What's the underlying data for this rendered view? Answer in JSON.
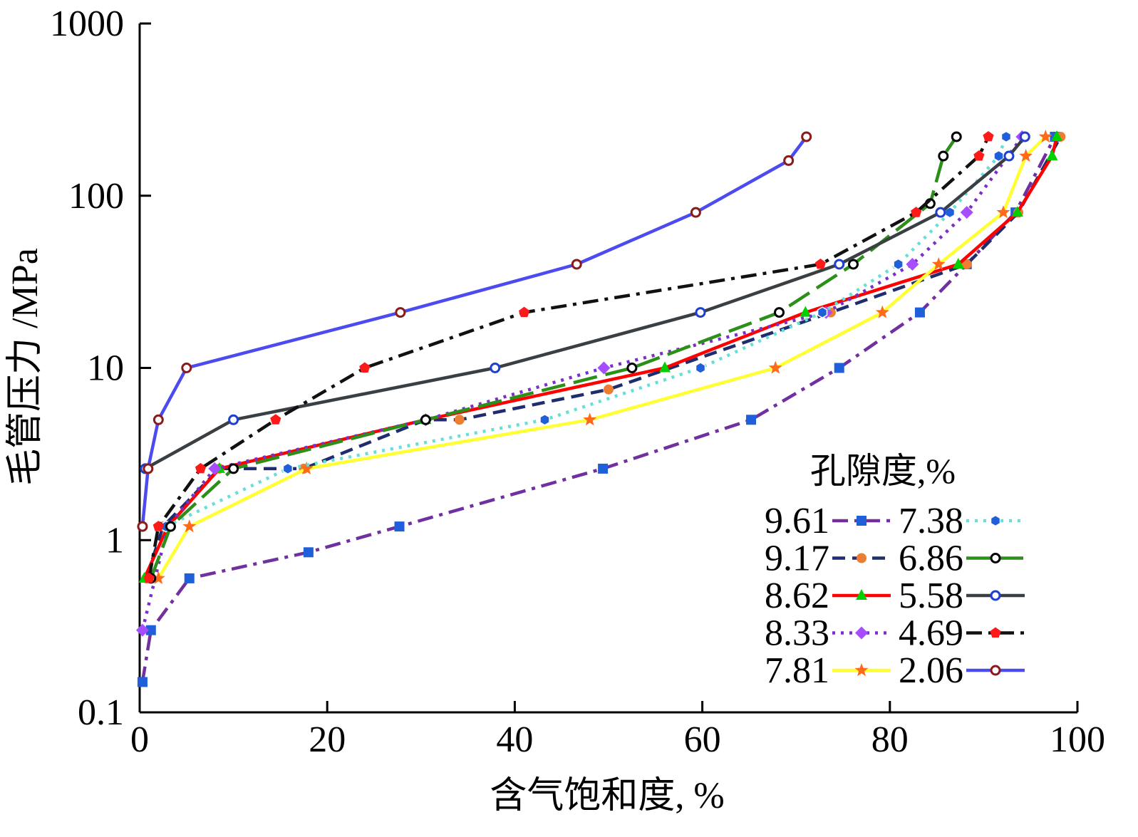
{
  "chart_data": {
    "type": "line",
    "xlabel": "含气饱和度, %",
    "ylabel": "毛管压力 /MPa",
    "xlim": [
      0,
      100
    ],
    "ylim": [
      0.1,
      1000
    ],
    "y_scale": "log",
    "x_ticks": [
      "0",
      "20",
      "40",
      "60",
      "80",
      "100"
    ],
    "y_ticks": [
      "0.1",
      "1",
      "10",
      "100",
      "1000"
    ],
    "legend": {
      "title": "孔隙度,%",
      "placement": "bottom-right",
      "columns": 2
    },
    "series": [
      {
        "name": "9.61",
        "color": "#7030a0",
        "dash": "dashdot",
        "marker": "square",
        "marker_color": "#1f5fd9",
        "points": [
          [
            0.3,
            0.15
          ],
          [
            1.2,
            0.3
          ],
          [
            5.3,
            0.6
          ],
          [
            18,
            0.85
          ],
          [
            27.7,
            1.2
          ],
          [
            49.4,
            2.6
          ],
          [
            65.2,
            5
          ],
          [
            74.6,
            10
          ],
          [
            83.2,
            21
          ],
          [
            88.2,
            40
          ],
          [
            93.4,
            80
          ],
          [
            97.6,
            220
          ]
        ]
      },
      {
        "name": "9.17",
        "color": "#1f2d6e",
        "dash": "dash",
        "marker": "circle",
        "marker_color": "#ed7d31",
        "points": [
          [
            0.7,
            0.6
          ],
          [
            2.5,
            1.2
          ],
          [
            8.5,
            2.6
          ],
          [
            17.5,
            2.6
          ],
          [
            30.5,
            5
          ],
          [
            34.1,
            5
          ],
          [
            50,
            7.5
          ],
          [
            73.7,
            21
          ],
          [
            88.2,
            40
          ],
          [
            93.7,
            80
          ],
          [
            98.2,
            220
          ]
        ]
      },
      {
        "name": "8.62",
        "color": "#ff0000",
        "dash": "solid",
        "marker": "triangle",
        "marker_color": "#00d000",
        "points": [
          [
            0.5,
            0.6
          ],
          [
            3,
            1.2
          ],
          [
            8.5,
            2.6
          ],
          [
            30.5,
            5
          ],
          [
            56,
            10
          ],
          [
            71,
            21
          ],
          [
            87.3,
            40
          ],
          [
            93.6,
            80
          ],
          [
            97.3,
            170
          ],
          [
            97.8,
            220
          ]
        ]
      },
      {
        "name": "8.33",
        "color": "#7b2fc9",
        "dash": "dot",
        "marker": "diamond",
        "marker_color": "#a64dff",
        "points": [
          [
            0.3,
            0.3
          ],
          [
            3,
            1.2
          ],
          [
            8,
            2.6
          ],
          [
            30.5,
            5
          ],
          [
            49.5,
            10
          ],
          [
            73.2,
            21
          ],
          [
            82.4,
            40
          ],
          [
            88.2,
            80
          ],
          [
            94.1,
            220
          ]
        ]
      },
      {
        "name": "7.81",
        "color": "#ffff33",
        "dash": "solid",
        "marker": "star",
        "marker_color": "#ff6a1a",
        "points": [
          [
            2,
            0.6
          ],
          [
            5.3,
            1.2
          ],
          [
            17.8,
            2.6
          ],
          [
            48,
            5
          ],
          [
            67.8,
            10
          ],
          [
            79.2,
            21
          ],
          [
            85.2,
            40
          ],
          [
            92.1,
            80
          ],
          [
            94.5,
            170
          ],
          [
            96.6,
            220
          ]
        ]
      },
      {
        "name": "7.38",
        "color": "#66e0d6",
        "dash": "dot",
        "marker": "hexagon",
        "marker_color": "#1f5fd9",
        "points": [
          [
            2.8,
            1.2
          ],
          [
            15.8,
            2.6
          ],
          [
            43.2,
            5
          ],
          [
            59.8,
            10
          ],
          [
            72.8,
            21
          ],
          [
            80.9,
            40
          ],
          [
            86.4,
            80
          ],
          [
            91.6,
            170
          ],
          [
            92.4,
            220
          ]
        ]
      },
      {
        "name": "6.86",
        "color": "#2c8f1a",
        "dash": "longdash",
        "marker": "ring",
        "marker_color": "#000000",
        "points": [
          [
            1.2,
            0.6
          ],
          [
            3.3,
            1.2
          ],
          [
            10,
            2.6
          ],
          [
            30.5,
            5
          ],
          [
            52.5,
            10
          ],
          [
            68.2,
            21
          ],
          [
            76.1,
            40
          ],
          [
            84.3,
            90
          ],
          [
            85.7,
            170
          ],
          [
            87.1,
            220
          ]
        ]
      },
      {
        "name": "5.58",
        "color": "#3a3f44",
        "dash": "solid",
        "marker": "ring",
        "marker_color": "#1f3fcf",
        "points": [
          [
            0.6,
            2.6
          ],
          [
            10,
            5
          ],
          [
            37.9,
            10
          ],
          [
            59.8,
            21
          ],
          [
            74.6,
            40
          ],
          [
            85.4,
            80
          ],
          [
            92.7,
            170
          ],
          [
            94.4,
            220
          ]
        ]
      },
      {
        "name": "4.69",
        "color": "#111111",
        "dash": "dashdot",
        "marker": "pentagon",
        "marker_color": "#ff1a1a",
        "points": [
          [
            1,
            0.6
          ],
          [
            2,
            1.2
          ],
          [
            6.5,
            2.6
          ],
          [
            14.5,
            5
          ],
          [
            24,
            10
          ],
          [
            41,
            21
          ],
          [
            72.6,
            40
          ],
          [
            82.8,
            80
          ],
          [
            89.5,
            170
          ],
          [
            90.5,
            220
          ]
        ]
      },
      {
        "name": "2.06",
        "color": "#4b4bf0",
        "dash": "solid",
        "marker": "ring",
        "marker_color": "#8b1a1a",
        "points": [
          [
            0.3,
            1.2
          ],
          [
            0.9,
            2.6
          ],
          [
            2,
            5
          ],
          [
            5,
            10
          ],
          [
            27.8,
            21
          ],
          [
            46.6,
            40
          ],
          [
            59.3,
            80
          ],
          [
            69.2,
            160
          ],
          [
            71.1,
            220
          ]
        ]
      }
    ]
  }
}
